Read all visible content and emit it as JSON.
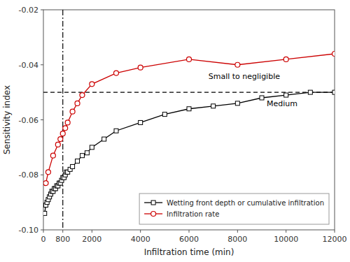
{
  "chart_data": {
    "type": "line",
    "xlabel": "Infiltration time (min)",
    "ylabel": "Sensitivity index",
    "series": [
      {
        "name": "Wetting front depth or cumulative infiltration",
        "color": "#000000",
        "marker": "square",
        "line_style": "solid",
        "x": [
          50,
          100,
          150,
          200,
          250,
          300,
          350,
          400,
          450,
          500,
          550,
          600,
          650,
          700,
          750,
          800,
          850,
          900,
          950,
          1000,
          1100,
          1200,
          1400,
          1600,
          1800,
          2000,
          2500,
          3000,
          4000,
          5000,
          6000,
          7000,
          8000,
          9000,
          10000,
          11000,
          12000
        ],
        "values": [
          -0.094,
          -0.091,
          -0.09,
          -0.089,
          -0.088,
          -0.087,
          -0.086,
          -0.086,
          -0.085,
          -0.085,
          -0.084,
          -0.084,
          -0.083,
          -0.083,
          -0.082,
          -0.081,
          -0.081,
          -0.08,
          -0.079,
          -0.079,
          -0.078,
          -0.077,
          -0.075,
          -0.073,
          -0.072,
          -0.07,
          -0.067,
          -0.064,
          -0.061,
          -0.058,
          -0.056,
          -0.055,
          -0.054,
          -0.052,
          -0.051,
          -0.05,
          -0.05
        ]
      },
      {
        "name": "Infiltration rate",
        "color": "#cc0000",
        "marker": "circle",
        "line_style": "solid",
        "x": [
          100,
          200,
          400,
          600,
          700,
          800,
          900,
          1000,
          1200,
          1400,
          1600,
          2000,
          3000,
          4000,
          6000,
          8000,
          10000,
          12000
        ],
        "values": [
          -0.083,
          -0.079,
          -0.073,
          -0.069,
          -0.067,
          -0.065,
          -0.063,
          -0.061,
          -0.057,
          -0.054,
          -0.051,
          -0.047,
          -0.043,
          -0.041,
          -0.038,
          -0.04,
          -0.038,
          -0.036
        ]
      }
    ],
    "reference_lines": [
      {
        "x": 800,
        "color": "#000000",
        "line_style": "dashdot"
      },
      {
        "y": -0.05,
        "color": "#000000",
        "line_style": "dashed"
      }
    ],
    "annotations": [
      {
        "text": "Small to negligible",
        "x": 6800,
        "y": -0.044
      },
      {
        "text": "Medium",
        "x": 9200,
        "y": -0.054
      }
    ],
    "xlim": [
      0,
      12000
    ],
    "ylim": [
      -0.1,
      -0.02
    ],
    "xticks": [
      0,
      800,
      2000,
      4000,
      6000,
      8000,
      10000,
      12000
    ],
    "yticks": [
      {
        "value": -0.1,
        "label": "-0.10"
      },
      -0.08,
      -0.06,
      -0.04,
      -0.02
    ],
    "grid": false,
    "legend": "lower right"
  }
}
